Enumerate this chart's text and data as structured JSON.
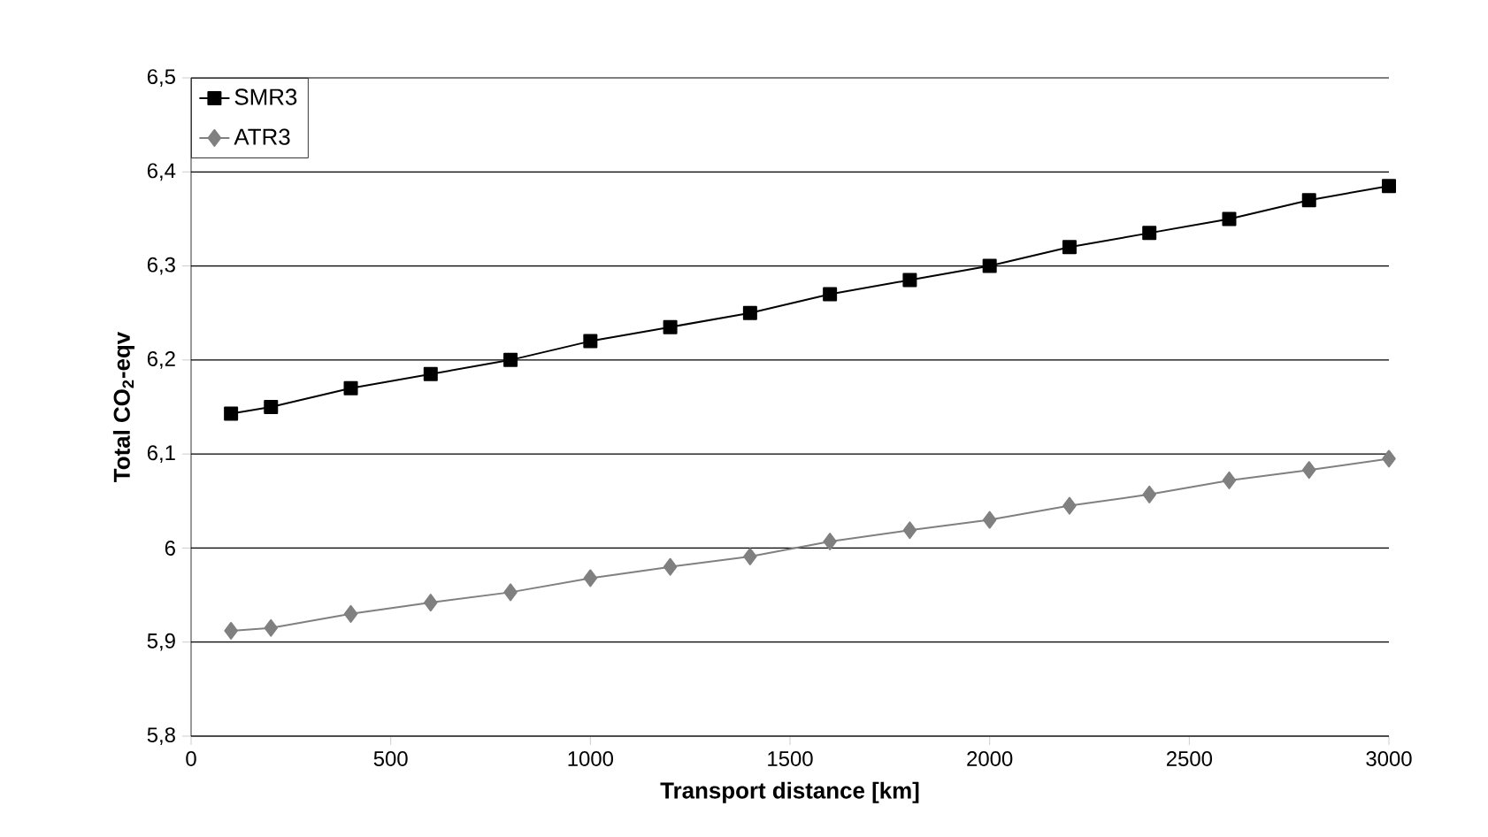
{
  "chart_data": {
    "type": "line",
    "xlabel": "Transport distance [km]",
    "ylabel": "Total CO$_{2}$-eqv",
    "x": [
      100,
      200,
      400,
      600,
      800,
      1000,
      1200,
      1400,
      1600,
      1800,
      2000,
      2200,
      2400,
      2600,
      2800,
      3000
    ],
    "series": [
      {
        "name": "SMR3",
        "color": "#000000",
        "marker": "square",
        "values": [
          6.143,
          6.15,
          6.17,
          6.185,
          6.2,
          6.22,
          6.235,
          6.25,
          6.27,
          6.285,
          6.3,
          6.32,
          6.335,
          6.35,
          6.37,
          6.385
        ]
      },
      {
        "name": "ATR3",
        "color": "#808080",
        "marker": "diamond",
        "values": [
          5.912,
          5.915,
          5.93,
          5.942,
          5.953,
          5.968,
          5.98,
          5.991,
          6.007,
          6.019,
          6.03,
          6.045,
          6.057,
          6.072,
          6.083,
          6.095
        ]
      }
    ],
    "xlim": [
      0,
      3000
    ],
    "xticks": [
      0,
      500,
      1000,
      1500,
      2000,
      2500,
      3000
    ],
    "ylim": [
      5.8,
      6.5
    ],
    "yticks": [
      {
        "value": 5.8,
        "label": "5,8"
      },
      {
        "value": 5.9,
        "label": "5,9"
      },
      {
        "value": 6,
        "label": "6"
      },
      {
        "value": 6.1,
        "label": "6,1"
      },
      {
        "value": 6.2,
        "label": "6,2"
      },
      {
        "value": 6.3,
        "label": "6,3"
      },
      {
        "value": 6.4,
        "label": "6,4"
      },
      {
        "value": 6.5,
        "label": "6,5"
      }
    ],
    "grid": "y",
    "legend": "top left",
    "line_style": "solid"
  }
}
